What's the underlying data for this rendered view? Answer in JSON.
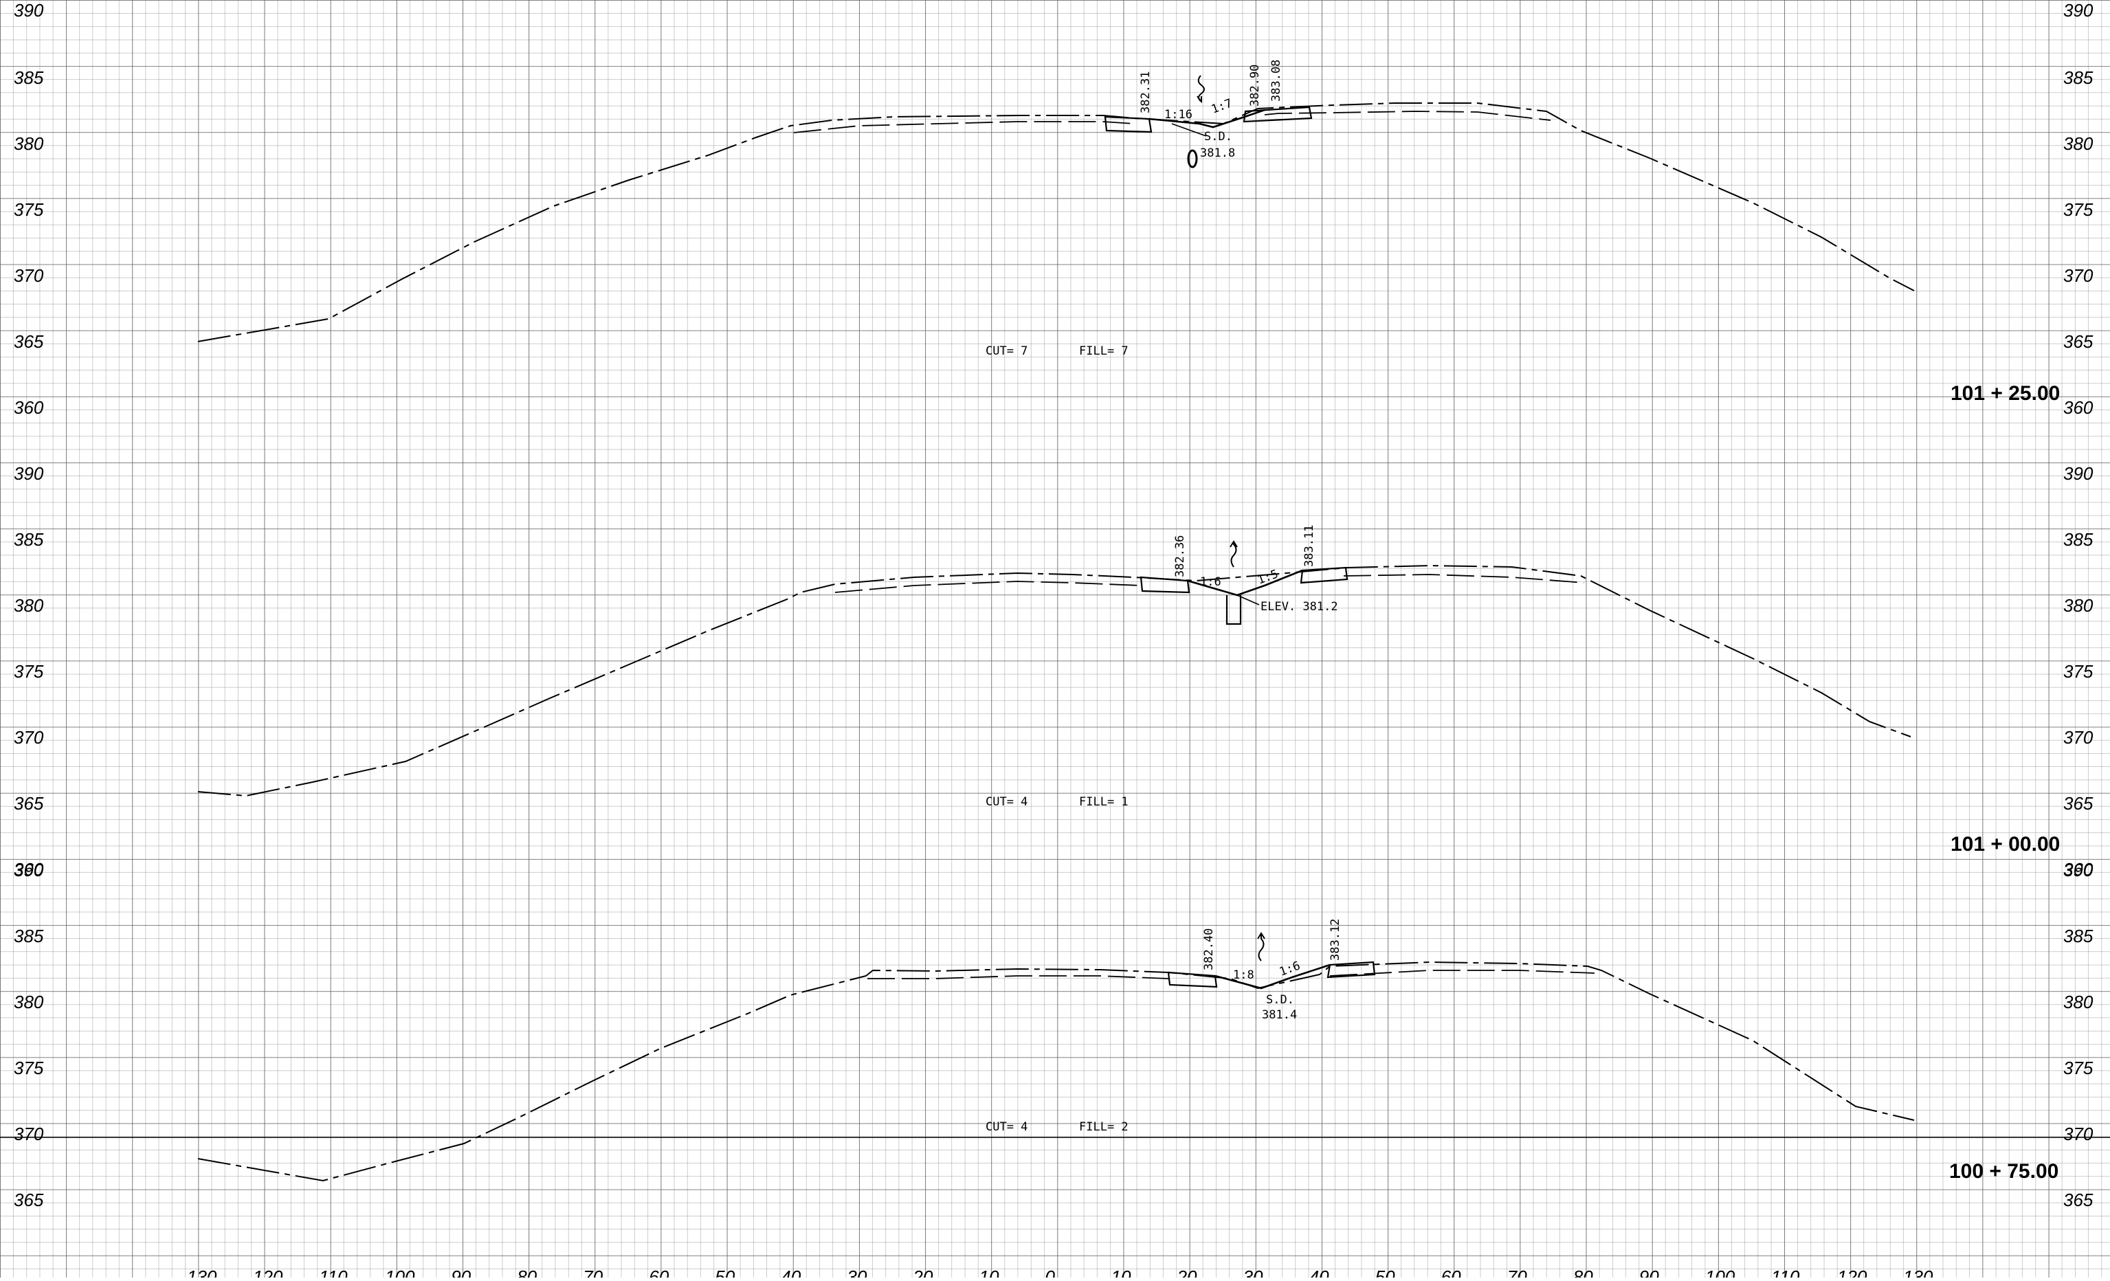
{
  "drawing": {
    "panels": [
      {
        "station": "101 + 25.00",
        "elevation_labels": [
          "390",
          "385",
          "380",
          "375",
          "370",
          "365",
          "360"
        ],
        "cut_label": "CUT= 7",
        "fill_label": "FILL= 7",
        "annotations": [
          {
            "text": "382.31"
          },
          {
            "text": "1:16"
          },
          {
            "text": "1:7"
          },
          {
            "text": "382.90"
          },
          {
            "text": "383.08"
          },
          {
            "text": "S.D."
          },
          {
            "text": "381.8"
          }
        ]
      },
      {
        "station": "101 + 00.00",
        "elevation_labels": [
          "390",
          "385",
          "380",
          "375",
          "370",
          "365",
          "360"
        ],
        "cut_label": "CUT= 4",
        "fill_label": "FILL= 1",
        "annotations": [
          {
            "text": "382.36"
          },
          {
            "text": "1:6"
          },
          {
            "text": "1:5"
          },
          {
            "text": "383.11"
          },
          {
            "text": "ELEV. 381.2"
          }
        ]
      },
      {
        "station": "100 + 75.00",
        "elevation_labels": [
          "390",
          "385",
          "380",
          "375",
          "370",
          "365"
        ],
        "cut_label": "CUT= 4",
        "fill_label": "FILL= 2",
        "annotations": [
          {
            "text": "382.40"
          },
          {
            "text": "1:8"
          },
          {
            "text": "1:6"
          },
          {
            "text": "383.12"
          },
          {
            "text": "S.D."
          },
          {
            "text": "381.4"
          }
        ]
      }
    ],
    "offset_labels": [
      "130",
      "120",
      "110",
      "100",
      "90",
      "80",
      "70",
      "60",
      "50",
      "40",
      "30",
      "20",
      "10",
      "0",
      "10",
      "20",
      "30",
      "40",
      "50",
      "60",
      "70",
      "80",
      "90",
      "100",
      "110",
      "120",
      "130"
    ]
  }
}
